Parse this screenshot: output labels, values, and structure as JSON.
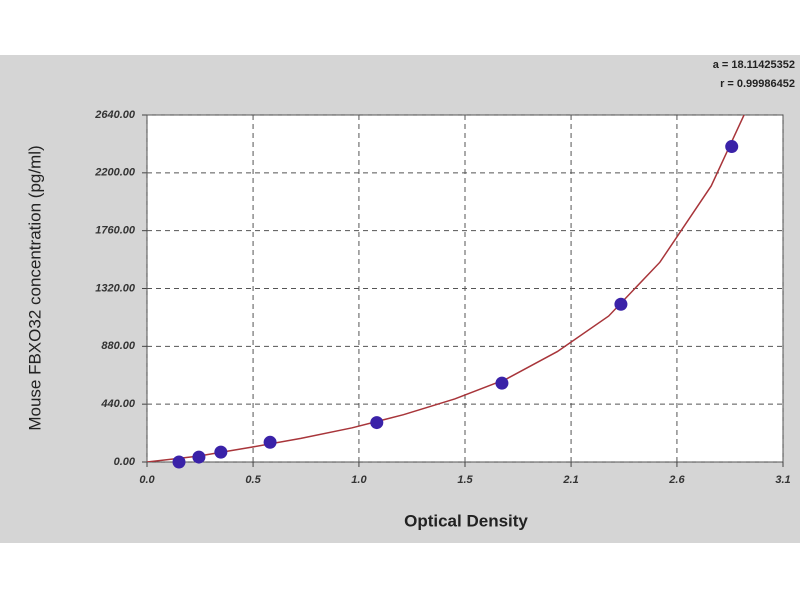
{
  "chart_data": {
    "type": "scatter",
    "annotations": [
      "a = 18.11425352",
      "r = 0.99986452"
    ],
    "xlabel": "Optical Density",
    "ylabel": "Mouse FBXO32 concentration (pg/ml)",
    "xlim": [
      0,
      3.1
    ],
    "ylim": [
      0,
      2640
    ],
    "xticks": [
      {
        "value": 0,
        "label": "0.0"
      },
      {
        "value": 0.517,
        "label": "0.5"
      },
      {
        "value": 1.033,
        "label": "1.0"
      },
      {
        "value": 1.55,
        "label": "1.5"
      },
      {
        "value": 2.067,
        "label": "2.1"
      },
      {
        "value": 2.583,
        "label": "2.6"
      },
      {
        "value": 3.1,
        "label": "3.1"
      }
    ],
    "yticks": [
      {
        "value": 0,
        "label": "0.00"
      },
      {
        "value": 440,
        "label": "440.00"
      },
      {
        "value": 880,
        "label": "880.00"
      },
      {
        "value": 1320,
        "label": "1320.00"
      },
      {
        "value": 1760,
        "label": "1760.00"
      },
      {
        "value": 2200,
        "label": "2200.00"
      },
      {
        "value": 2640,
        "label": "2640.00"
      }
    ],
    "grid": true,
    "series": [
      {
        "color": "#3a22a8",
        "x": [
          0.156,
          0.253,
          0.36,
          0.6,
          1.12,
          1.73,
          2.31,
          2.85
        ],
        "values": [
          0,
          37.5,
          75,
          150,
          300,
          600,
          1200,
          2400
        ]
      },
      {
        "type": "line",
        "color": "#a8353a",
        "x": [
          0,
          0.25,
          0.5,
          0.75,
          1.0,
          1.25,
          1.5,
          1.75,
          2.0,
          2.25,
          2.5,
          2.75,
          2.91
        ],
        "values": [
          0,
          45,
          110,
          180,
          260,
          360,
          480,
          630,
          840,
          1110,
          1520,
          2100,
          2640
        ]
      }
    ]
  }
}
